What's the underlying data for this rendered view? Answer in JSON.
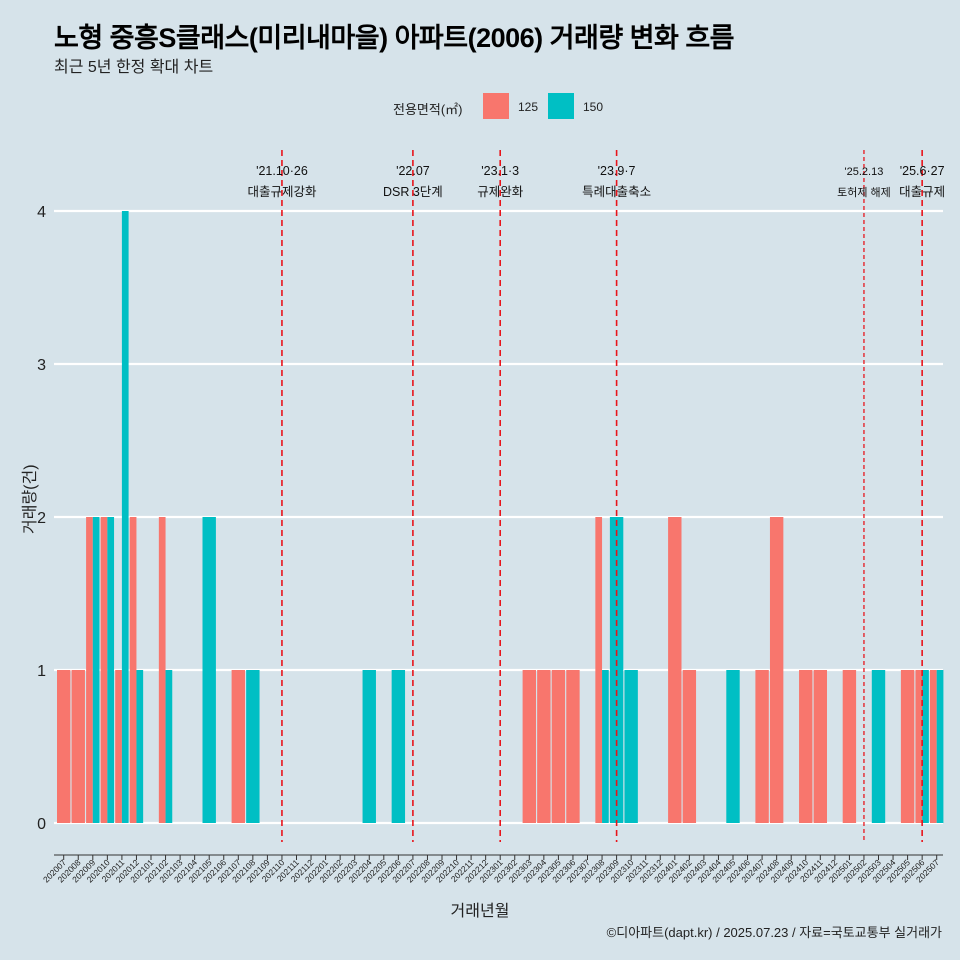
{
  "title": "노형 중흥S클래스(미리내마을) 아파트(2006) 거래량 변화 흐름",
  "subtitle": "최근 5년 한정 확대 차트",
  "caption": "©디아파트(dapt.kr) / 2025.07.23 / 자료=국토교통부 실거래가",
  "legend": {
    "title": "전용면적(㎡)",
    "items": [
      {
        "label": "125",
        "color": "#f8766d"
      },
      {
        "label": "150",
        "color": "#00bfc4"
      }
    ]
  },
  "chart_data": {
    "type": "bar",
    "xlabel": "거래년월",
    "ylabel": "거래량(건)",
    "ylim": [
      0,
      4
    ],
    "yticks": [
      0,
      1,
      2,
      3,
      4
    ],
    "grid": true,
    "legend_position": "top",
    "categories": [
      "202007",
      "202008",
      "202009",
      "202010",
      "202011",
      "202012",
      "202101",
      "202102",
      "202103",
      "202104",
      "202105",
      "202106",
      "202107",
      "202108",
      "202109",
      "202110",
      "202111",
      "202112",
      "202201",
      "202202",
      "202203",
      "202204",
      "202205",
      "202206",
      "202207",
      "202208",
      "202209",
      "202210",
      "202211",
      "202212",
      "202301",
      "202302",
      "202303",
      "202304",
      "202305",
      "202306",
      "202307",
      "202308",
      "202309",
      "202310",
      "202311",
      "202312",
      "202401",
      "202402",
      "202403",
      "202404",
      "202405",
      "202406",
      "202407",
      "202408",
      "202409",
      "202410",
      "202411",
      "202412",
      "202501",
      "202502",
      "202503",
      "202504",
      "202505",
      "202506",
      "202507"
    ],
    "series": [
      {
        "name": "125",
        "color": "#f8766d",
        "values": [
          1,
          1,
          2,
          2,
          1,
          2,
          0,
          2,
          0,
          0,
          0,
          0,
          1,
          0,
          0,
          0,
          0,
          0,
          0,
          0,
          0,
          0,
          0,
          0,
          0,
          0,
          0,
          0,
          0,
          0,
          0,
          0,
          1,
          1,
          1,
          1,
          0,
          2,
          0,
          0,
          0,
          0,
          2,
          1,
          0,
          0,
          0,
          0,
          1,
          2,
          0,
          1,
          1,
          0,
          1,
          0,
          0,
          0,
          1,
          1,
          1
        ]
      },
      {
        "name": "150",
        "color": "#00bfc4",
        "values": [
          0,
          0,
          2,
          2,
          4,
          1,
          0,
          1,
          0,
          0,
          2,
          0,
          0,
          1,
          0,
          0,
          0,
          0,
          0,
          0,
          0,
          1,
          0,
          1,
          0,
          0,
          0,
          0,
          0,
          0,
          0,
          0,
          0,
          0,
          0,
          0,
          0,
          1,
          2,
          1,
          0,
          0,
          0,
          0,
          0,
          0,
          1,
          0,
          0,
          0,
          0,
          0,
          0,
          0,
          0,
          0,
          1,
          0,
          0,
          1,
          1
        ]
      }
    ],
    "annotations": [
      {
        "category": "202110",
        "date": "'21.10·26",
        "label": "대출규제강화"
      },
      {
        "category": "202207",
        "date": "'22.07",
        "label": "DSR 3단계"
      },
      {
        "category": "202301",
        "date": "'23.1·3",
        "label": "규제완화"
      },
      {
        "category": "202309",
        "date": "'23.9·7",
        "label": "특례대출축소"
      },
      {
        "category": "202502",
        "date": "'25.2.13",
        "label": "토허제 해제",
        "small": true
      },
      {
        "category": "202506",
        "date": "'25.6·27",
        "label": "대출규제"
      }
    ]
  }
}
